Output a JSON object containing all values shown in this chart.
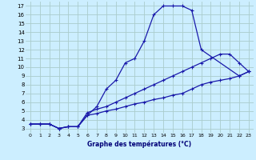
{
  "title": "Graphe des températures (°C)",
  "bg_color": "#cceeff",
  "grid_color": "#aacccc",
  "line_color": "#1a1aaa",
  "xlim": [
    -0.5,
    23.5
  ],
  "ylim": [
    2.5,
    17.5
  ],
  "xticks": [
    0,
    1,
    2,
    3,
    4,
    5,
    6,
    7,
    8,
    9,
    10,
    11,
    12,
    13,
    14,
    15,
    16,
    17,
    18,
    19,
    20,
    21,
    22,
    23
  ],
  "yticks": [
    3,
    4,
    5,
    6,
    7,
    8,
    9,
    10,
    11,
    12,
    13,
    14,
    15,
    16,
    17
  ],
  "line1_x": [
    0,
    1,
    2,
    3,
    4,
    5,
    6,
    7,
    8,
    9,
    10,
    11,
    12,
    13,
    14,
    15,
    16,
    17,
    18,
    22,
    23
  ],
  "line1_y": [
    3.5,
    3.5,
    3.5,
    3.0,
    3.2,
    3.2,
    4.5,
    5.5,
    7.5,
    8.5,
    10.5,
    11.0,
    13.0,
    16.0,
    17.0,
    17.0,
    17.0,
    16.5,
    12.0,
    9.0,
    9.5
  ],
  "line2_x": [
    0,
    1,
    2,
    3,
    4,
    5,
    6,
    7,
    8,
    9,
    10,
    11,
    12,
    13,
    14,
    15,
    16,
    17,
    18,
    19,
    20,
    21,
    22,
    23
  ],
  "line2_y": [
    3.5,
    3.5,
    3.5,
    3.0,
    3.2,
    3.2,
    4.8,
    5.2,
    5.5,
    6.0,
    6.5,
    7.0,
    7.5,
    8.0,
    8.5,
    9.0,
    9.5,
    10.0,
    10.5,
    11.0,
    11.5,
    11.5,
    10.5,
    9.5
  ],
  "line3_x": [
    0,
    1,
    2,
    3,
    4,
    5,
    6,
    7,
    8,
    9,
    10,
    11,
    12,
    13,
    14,
    15,
    16,
    17,
    18,
    19,
    20,
    21,
    22,
    23
  ],
  "line3_y": [
    3.5,
    3.5,
    3.5,
    3.0,
    3.2,
    3.2,
    4.5,
    4.7,
    5.0,
    5.2,
    5.5,
    5.8,
    6.0,
    6.3,
    6.5,
    6.8,
    7.0,
    7.5,
    8.0,
    8.3,
    8.5,
    8.7,
    9.0,
    9.5
  ]
}
